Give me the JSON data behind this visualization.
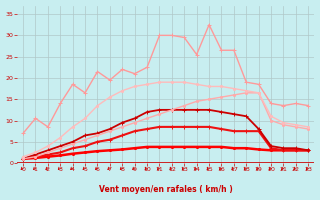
{
  "background_color": "#c8eef0",
  "grid_color": "#b0c8c8",
  "xlabel": "Vent moyen/en rafales ( km/h )",
  "xlabel_color": "#cc0000",
  "tick_color": "#cc0000",
  "xlim": [
    -0.5,
    23.5
  ],
  "ylim": [
    0,
    37
  ],
  "yticks": [
    0,
    5,
    10,
    15,
    20,
    25,
    30,
    35
  ],
  "xticks": [
    0,
    1,
    2,
    3,
    4,
    5,
    6,
    7,
    8,
    9,
    10,
    11,
    12,
    13,
    14,
    15,
    16,
    17,
    18,
    19,
    20,
    21,
    22,
    23
  ],
  "series": [
    {
      "name": "bottom_flat",
      "color": "#ff0000",
      "linewidth": 1.8,
      "marker": "o",
      "markersize": 1.5,
      "data_x": [
        0,
        1,
        2,
        3,
        4,
        5,
        6,
        7,
        8,
        9,
        10,
        11,
        12,
        13,
        14,
        15,
        16,
        17,
        18,
        19,
        20,
        21,
        22,
        23
      ],
      "data_y": [
        1.0,
        1.2,
        1.5,
        1.8,
        2.2,
        2.5,
        2.8,
        3.0,
        3.2,
        3.5,
        3.8,
        3.8,
        3.8,
        3.8,
        3.8,
        3.8,
        3.8,
        3.5,
        3.5,
        3.2,
        3.0,
        3.0,
        3.0,
        3.0
      ]
    },
    {
      "name": "red_medium_low",
      "color": "#ee1111",
      "linewidth": 1.5,
      "marker": "+",
      "markersize": 3.5,
      "data_x": [
        0,
        1,
        2,
        3,
        4,
        5,
        6,
        7,
        8,
        9,
        10,
        11,
        12,
        13,
        14,
        15,
        16,
        17,
        18,
        19,
        20,
        21,
        22,
        23
      ],
      "data_y": [
        1.0,
        1.5,
        2.0,
        2.5,
        3.5,
        4.0,
        5.0,
        5.5,
        6.5,
        7.5,
        8.0,
        8.5,
        8.5,
        8.5,
        8.5,
        8.5,
        8.0,
        7.5,
        7.5,
        7.5,
        3.5,
        3.0,
        3.0,
        3.0
      ]
    },
    {
      "name": "red_medium",
      "color": "#cc0000",
      "linewidth": 1.3,
      "marker": "+",
      "markersize": 3,
      "data_x": [
        0,
        1,
        2,
        3,
        4,
        5,
        6,
        7,
        8,
        9,
        10,
        11,
        12,
        13,
        14,
        15,
        16,
        17,
        18,
        19,
        20,
        21,
        22,
        23
      ],
      "data_y": [
        1.0,
        2.0,
        3.0,
        4.0,
        5.0,
        6.5,
        7.0,
        8.0,
        9.5,
        10.5,
        12.0,
        12.5,
        12.5,
        12.5,
        12.5,
        12.5,
        12.0,
        11.5,
        11.0,
        8.0,
        4.0,
        3.5,
        3.5,
        3.0
      ]
    },
    {
      "name": "light_red_straight",
      "color": "#ffaaaa",
      "linewidth": 1.0,
      "marker": "o",
      "markersize": 1.5,
      "data_x": [
        0,
        1,
        2,
        3,
        4,
        5,
        6,
        7,
        8,
        9,
        10,
        11,
        12,
        13,
        14,
        15,
        16,
        17,
        18,
        19,
        20,
        21,
        22,
        23
      ],
      "data_y": [
        1.0,
        1.5,
        2.5,
        3.5,
        4.5,
        5.5,
        6.5,
        7.5,
        8.5,
        9.5,
        10.5,
        11.5,
        12.5,
        13.5,
        14.5,
        15.0,
        15.5,
        16.0,
        16.5,
        16.5,
        10.0,
        9.0,
        8.5,
        8.0
      ]
    },
    {
      "name": "light_red_upper",
      "color": "#ffbbbb",
      "linewidth": 1.0,
      "marker": "o",
      "markersize": 1.5,
      "data_x": [
        0,
        1,
        2,
        3,
        4,
        5,
        6,
        7,
        8,
        9,
        10,
        11,
        12,
        13,
        14,
        15,
        16,
        17,
        18,
        19,
        20,
        21,
        22,
        23
      ],
      "data_y": [
        1.5,
        2.5,
        4.0,
        6.0,
        8.5,
        10.5,
        13.5,
        15.5,
        17.0,
        18.0,
        18.5,
        19.0,
        19.0,
        19.0,
        18.5,
        18.0,
        18.0,
        17.5,
        17.0,
        16.5,
        11.0,
        9.5,
        9.0,
        8.5
      ]
    },
    {
      "name": "pink_peak",
      "color": "#ff9999",
      "linewidth": 1.0,
      "marker": "+",
      "markersize": 3,
      "data_x": [
        0,
        1,
        2,
        3,
        4,
        5,
        6,
        7,
        8,
        9,
        10,
        11,
        12,
        13,
        14,
        15,
        16,
        17,
        18,
        19,
        20,
        21,
        22,
        23
      ],
      "data_y": [
        7.0,
        10.5,
        8.5,
        14.0,
        18.5,
        16.5,
        21.5,
        19.5,
        22.0,
        21.0,
        22.5,
        30.0,
        30.0,
        29.5,
        25.5,
        32.5,
        26.5,
        26.5,
        19.0,
        18.5,
        14.0,
        13.5,
        14.0,
        13.5
      ]
    }
  ],
  "arrow_color": "#cc0000"
}
